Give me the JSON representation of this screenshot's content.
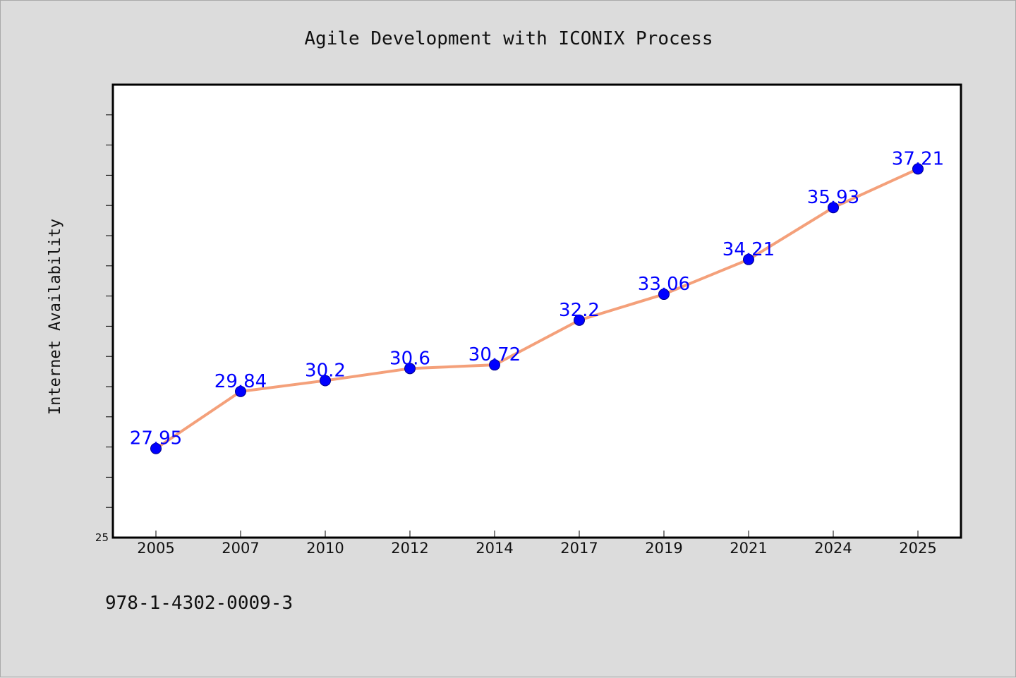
{
  "chart_data": {
    "type": "line",
    "title": "Agile Development with ICONIX Process",
    "xlabel": "",
    "ylabel": "Internet Availability",
    "categories": [
      "2005",
      "2007",
      "2010",
      "2012",
      "2014",
      "2017",
      "2019",
      "2021",
      "2024",
      "2025"
    ],
    "values": [
      27.95,
      29.84,
      30.2,
      30.6,
      30.72,
      32.2,
      33.06,
      34.21,
      35.93,
      37.21
    ],
    "data_labels": [
      "27.95",
      "29.84",
      "30.2",
      "30.6",
      "30.72",
      "32.2",
      "33.06",
      "34.21",
      "35.93",
      "37.21"
    ],
    "ylim": [
      25,
      40
    ],
    "yticks_labeled": [
      "25"
    ],
    "grid": false,
    "legend": "none",
    "line_color": "#f4a07a",
    "marker_color": "#0000ff",
    "label_color": "#0000ff"
  },
  "footer": {
    "isbn": "978-1-4302-0009-3"
  },
  "colors": {
    "background": "#dcdcdc",
    "plot_background": "#ffffff",
    "axis": "#000000"
  }
}
